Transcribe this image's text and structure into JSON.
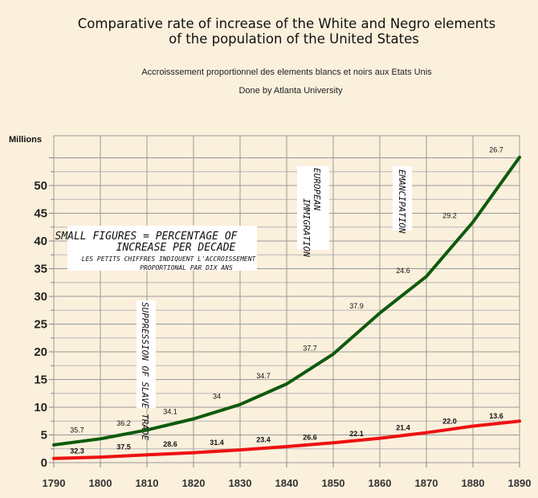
{
  "chart_data": {
    "type": "line",
    "title_line1": "Comparative rate of increase of the White and Negro elements",
    "title_line2": "of the population of the United States",
    "subtitle": "Accroisssement proportionnel des elements blancs et noirs aux Etats Unis",
    "credit": "Done by Atlanta University",
    "ylabel": "Millions",
    "xlim": [
      1790,
      1890
    ],
    "ylim": [
      0,
      55
    ],
    "x": [
      1790,
      1800,
      1810,
      1820,
      1830,
      1840,
      1850,
      1860,
      1870,
      1880,
      1890
    ],
    "x_tick_labels": [
      "1790",
      "1800",
      "1810",
      "1820",
      "1830",
      "1840",
      "1850",
      "1860",
      "1870",
      "1880",
      "1890"
    ],
    "y_ticks": [
      0,
      5,
      10,
      15,
      20,
      25,
      30,
      35,
      40,
      45,
      50
    ],
    "y_tick_labels": [
      "0",
      "5",
      "10",
      "15",
      "20",
      "25",
      "30",
      "35",
      "40",
      "45",
      "50"
    ],
    "grid": true,
    "series": [
      {
        "color": "#0e5a0e",
        "values": [
          3.2,
          4.3,
          5.9,
          7.9,
          10.5,
          14.2,
          19.6,
          27.0,
          33.6,
          43.4,
          55.1
        ],
        "rate_labels": [
          {
            "text": "35.7",
            "x": 1795,
            "y": 5.4
          },
          {
            "text": "36.2",
            "x": 1805,
            "y": 6.7
          },
          {
            "text": "34.1",
            "x": 1815,
            "y": 8.8
          },
          {
            "text": "34",
            "x": 1825,
            "y": 11.5
          },
          {
            "text": "34.7",
            "x": 1835,
            "y": 15.2
          },
          {
            "text": "37.7",
            "x": 1845,
            "y": 20.2
          },
          {
            "text": "37.9",
            "x": 1855,
            "y": 27.8
          },
          {
            "text": "24.6",
            "x": 1865,
            "y": 34.2
          },
          {
            "text": "29.2",
            "x": 1875,
            "y": 44.1
          },
          {
            "text": "26.7",
            "x": 1885,
            "y": 56.0
          }
        ]
      },
      {
        "color": "#ee1111",
        "values": [
          0.76,
          1.0,
          1.4,
          1.8,
          2.3,
          2.9,
          3.6,
          4.4,
          5.4,
          6.6,
          7.5
        ],
        "rate_labels": [
          {
            "text": "32.3",
            "x": 1795,
            "y": 1.7
          },
          {
            "text": "37.5",
            "x": 1805,
            "y": 2.4
          },
          {
            "text": "28.6",
            "x": 1815,
            "y": 2.9
          },
          {
            "text": "31.4",
            "x": 1825,
            "y": 3.2
          },
          {
            "text": "23.4",
            "x": 1835,
            "y": 3.7
          },
          {
            "text": "26.6",
            "x": 1845,
            "y": 4.1
          },
          {
            "text": "22.1",
            "x": 1855,
            "y": 4.8
          },
          {
            "text": "21.4",
            "x": 1865,
            "y": 5.9
          },
          {
            "text": "22.0",
            "x": 1875,
            "y": 7.0
          },
          {
            "text": "13.6",
            "x": 1885,
            "y": 8.0
          }
        ]
      }
    ],
    "annotations": {
      "legend_note_line1": "SMALL FIGURES = PERCENTAGE OF",
      "legend_note_line2": "INCREASE PER DECADE",
      "legend_note_line3": "LES PETITS CHIFFRES INDIQUENT L'ACCROISSEMENT",
      "legend_note_line4": "PROPORTIONAL PAR DIX ANS",
      "slave_trade": "SUPPRESSION OF SLAVE TRADE",
      "immigration_line1": "EUROPEAN",
      "immigration_line2": "IMMIGRATION",
      "emancipation": "EMANCIPATION"
    }
  }
}
